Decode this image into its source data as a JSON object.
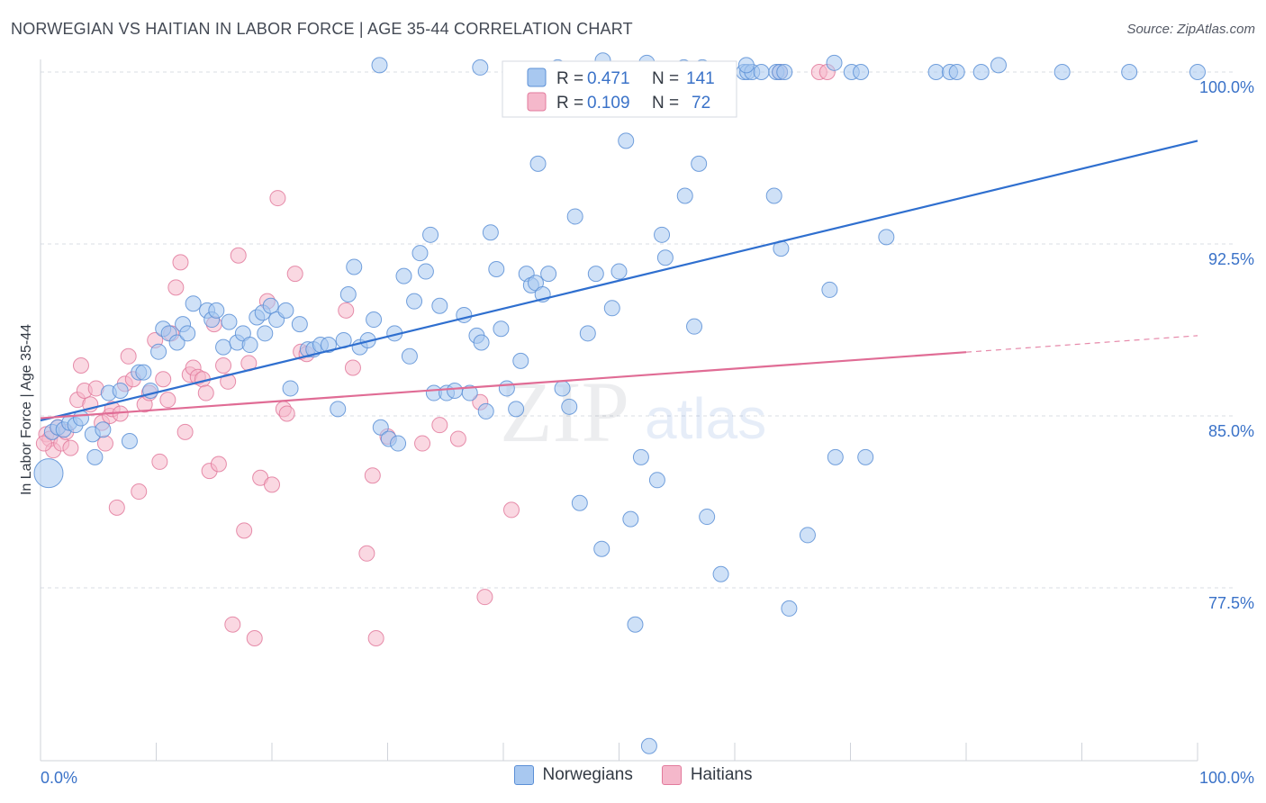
{
  "title": "NORWEGIAN VS HAITIAN IN LABOR FORCE | AGE 35-44 CORRELATION CHART",
  "source": "Source: ZipAtlas.com",
  "watermark": {
    "zip": "ZIP",
    "atlas": "atlas"
  },
  "colors": {
    "blue_fill": "#a8c8f0",
    "blue_stroke": "#5b8fd6",
    "blue_line": "#2f6fcf",
    "pink_fill": "#f5b8cb",
    "pink_stroke": "#e27a9c",
    "pink_line": "#e06c95",
    "axis_text": "#3a72c8",
    "grid": "#d8dce3"
  },
  "legend_box": {
    "rows": [
      {
        "r_label": "R = ",
        "r_value": "0.471",
        "n_label": "N = ",
        "n_value": "141"
      },
      {
        "r_label": "R = ",
        "r_value": "0.109",
        "n_label": "N = ",
        "n_value": "72"
      }
    ]
  },
  "chart_data": {
    "type": "scatter",
    "title": "NORWEGIAN VS HAITIAN IN LABOR FORCE | AGE 35-44 CORRELATION CHART",
    "xlabel": "",
    "ylabel": "In Labor Force | Age 35-44",
    "xlim": [
      0,
      100
    ],
    "ylim": [
      71.5,
      100.6
    ],
    "x_tick_labels": [
      "0.0%",
      "100.0%"
    ],
    "y_ticks": [
      77.5,
      85.0,
      92.5,
      100.0
    ],
    "y_tick_labels": [
      "77.5%",
      "85.0%",
      "92.5%",
      "100.0%"
    ],
    "grid": true,
    "legend_position": "bottom",
    "series": [
      {
        "name": "Norwegians",
        "R": 0.471,
        "N": 141,
        "trend": {
          "x": [
            0,
            100
          ],
          "y": [
            84.8,
            97.0
          ],
          "dashed_from": null
        },
        "points": [
          [
            0.7,
            82.5
          ],
          [
            1.0,
            84.3
          ],
          [
            1.5,
            84.5
          ],
          [
            2.0,
            84.4
          ],
          [
            2.5,
            84.7
          ],
          [
            3.0,
            84.6
          ],
          [
            3.5,
            84.9
          ],
          [
            4.5,
            84.2
          ],
          [
            4.7,
            83.2
          ],
          [
            5.4,
            84.4
          ],
          [
            5.9,
            86.0
          ],
          [
            6.9,
            86.1
          ],
          [
            7.7,
            83.9
          ],
          [
            8.5,
            86.9
          ],
          [
            8.9,
            86.9
          ],
          [
            9.5,
            86.1
          ],
          [
            10.2,
            87.8
          ],
          [
            10.6,
            88.8
          ],
          [
            11.1,
            88.6
          ],
          [
            11.8,
            88.2
          ],
          [
            12.3,
            89.0
          ],
          [
            12.7,
            88.6
          ],
          [
            13.2,
            89.9
          ],
          [
            14.4,
            89.6
          ],
          [
            14.8,
            89.2
          ],
          [
            15.2,
            89.6
          ],
          [
            15.8,
            88.0
          ],
          [
            16.3,
            89.1
          ],
          [
            17.0,
            88.2
          ],
          [
            17.5,
            88.6
          ],
          [
            18.1,
            88.1
          ],
          [
            18.7,
            89.3
          ],
          [
            19.2,
            89.5
          ],
          [
            19.4,
            88.6
          ],
          [
            19.9,
            89.8
          ],
          [
            20.4,
            89.2
          ],
          [
            21.2,
            89.6
          ],
          [
            21.6,
            86.2
          ],
          [
            22.4,
            89.0
          ],
          [
            23.1,
            87.9
          ],
          [
            23.6,
            87.9
          ],
          [
            24.2,
            88.1
          ],
          [
            24.9,
            88.1
          ],
          [
            25.7,
            85.3
          ],
          [
            26.2,
            88.3
          ],
          [
            26.6,
            90.3
          ],
          [
            27.1,
            91.5
          ],
          [
            27.6,
            88.0
          ],
          [
            28.3,
            88.3
          ],
          [
            28.8,
            89.2
          ],
          [
            29.4,
            84.5
          ],
          [
            30.6,
            88.6
          ],
          [
            30.1,
            84.0
          ],
          [
            30.9,
            83.8
          ],
          [
            31.4,
            91.1
          ],
          [
            31.9,
            87.6
          ],
          [
            32.3,
            90.0
          ],
          [
            32.8,
            92.1
          ],
          [
            33.3,
            91.3
          ],
          [
            33.7,
            92.9
          ],
          [
            34.0,
            86.0
          ],
          [
            34.5,
            89.8
          ],
          [
            35.1,
            86.0
          ],
          [
            35.8,
            86.1
          ],
          [
            36.6,
            89.4
          ],
          [
            37.1,
            86.0
          ],
          [
            37.7,
            88.5
          ],
          [
            38.1,
            88.2
          ],
          [
            38.5,
            85.2
          ],
          [
            38.9,
            93.0
          ],
          [
            39.4,
            91.4
          ],
          [
            39.8,
            88.8
          ],
          [
            40.3,
            86.2
          ],
          [
            41.1,
            85.3
          ],
          [
            41.5,
            87.4
          ],
          [
            42.0,
            91.2
          ],
          [
            42.4,
            90.7
          ],
          [
            42.8,
            90.8
          ],
          [
            43.0,
            96.0
          ],
          [
            43.4,
            90.3
          ],
          [
            43.9,
            91.2
          ],
          [
            45.1,
            86.2
          ],
          [
            45.7,
            85.4
          ],
          [
            46.2,
            93.7
          ],
          [
            46.6,
            81.2
          ],
          [
            47.3,
            88.6
          ],
          [
            48.0,
            91.2
          ],
          [
            48.5,
            79.2
          ],
          [
            49.4,
            89.7
          ],
          [
            50.0,
            91.3
          ],
          [
            50.6,
            97.0
          ],
          [
            51.0,
            80.5
          ],
          [
            51.4,
            75.9
          ],
          [
            51.9,
            83.2
          ],
          [
            52.6,
            70.6
          ],
          [
            53.3,
            82.2
          ],
          [
            53.7,
            92.9
          ],
          [
            54.0,
            91.9
          ],
          [
            55.7,
            94.6
          ],
          [
            56.5,
            88.9
          ],
          [
            56.9,
            96.0
          ],
          [
            57.6,
            80.6
          ],
          [
            58.8,
            78.1
          ],
          [
            60.8,
            100.0
          ],
          [
            61.1,
            100.0
          ],
          [
            61.5,
            100.0
          ],
          [
            62.3,
            100.0
          ],
          [
            63.6,
            100.0
          ],
          [
            63.9,
            100.0
          ],
          [
            64.3,
            100.0
          ],
          [
            63.4,
            94.6
          ],
          [
            64.0,
            92.3
          ],
          [
            64.7,
            76.6
          ],
          [
            66.3,
            79.8
          ],
          [
            68.2,
            90.5
          ],
          [
            68.7,
            83.2
          ],
          [
            70.1,
            100.0
          ],
          [
            70.9,
            100.0
          ],
          [
            71.3,
            83.2
          ],
          [
            73.1,
            92.8
          ],
          [
            77.4,
            100.0
          ],
          [
            78.6,
            100.0
          ],
          [
            79.2,
            100.0
          ],
          [
            81.3,
            100.0
          ],
          [
            88.3,
            100.0
          ],
          [
            94.1,
            100.0
          ],
          [
            100.0,
            100.0
          ],
          [
            48.6,
            100.5
          ],
          [
            57.2,
            100.2
          ],
          [
            61.0,
            100.3
          ],
          [
            38.0,
            100.2
          ],
          [
            44.7,
            100.2
          ],
          [
            52.4,
            100.4
          ],
          [
            29.3,
            100.3
          ],
          [
            55.6,
            100.2
          ],
          [
            68.6,
            100.4
          ],
          [
            82.8,
            100.3
          ]
        ]
      },
      {
        "name": "Haitians",
        "R": 0.109,
        "N": 72,
        "trend": {
          "x": [
            0,
            100
          ],
          "y": [
            84.9,
            88.5
          ],
          "dashed_from": 80
        },
        "points": [
          [
            0.5,
            84.2
          ],
          [
            0.8,
            84.0
          ],
          [
            1.1,
            83.5
          ],
          [
            1.5,
            84.5
          ],
          [
            1.8,
            83.8
          ],
          [
            2.2,
            84.3
          ],
          [
            2.6,
            83.6
          ],
          [
            3.2,
            85.7
          ],
          [
            3.5,
            87.2
          ],
          [
            3.8,
            86.1
          ],
          [
            4.3,
            85.5
          ],
          [
            4.8,
            86.2
          ],
          [
            5.3,
            84.7
          ],
          [
            5.6,
            83.8
          ],
          [
            6.0,
            85.0
          ],
          [
            6.2,
            85.3
          ],
          [
            6.6,
            81.0
          ],
          [
            6.9,
            85.1
          ],
          [
            7.3,
            86.4
          ],
          [
            7.6,
            87.6
          ],
          [
            8.0,
            86.6
          ],
          [
            8.5,
            81.7
          ],
          [
            9.0,
            85.5
          ],
          [
            9.4,
            86.0
          ],
          [
            9.9,
            88.3
          ],
          [
            10.3,
            83.0
          ],
          [
            10.6,
            86.6
          ],
          [
            11.0,
            85.7
          ],
          [
            11.3,
            88.6
          ],
          [
            11.7,
            90.6
          ],
          [
            12.1,
            91.7
          ],
          [
            12.5,
            84.3
          ],
          [
            12.9,
            86.8
          ],
          [
            13.2,
            87.1
          ],
          [
            13.6,
            86.7
          ],
          [
            14.0,
            86.6
          ],
          [
            14.3,
            86.0
          ],
          [
            14.6,
            82.6
          ],
          [
            15.0,
            89.0
          ],
          [
            15.4,
            82.9
          ],
          [
            15.8,
            87.2
          ],
          [
            16.2,
            86.5
          ],
          [
            16.6,
            75.9
          ],
          [
            17.1,
            92.0
          ],
          [
            17.6,
            80.0
          ],
          [
            18.0,
            87.3
          ],
          [
            18.5,
            75.3
          ],
          [
            19.0,
            82.3
          ],
          [
            19.6,
            90.0
          ],
          [
            20.0,
            82.0
          ],
          [
            20.5,
            94.5
          ],
          [
            21.0,
            85.3
          ],
          [
            21.3,
            85.1
          ],
          [
            22.0,
            91.2
          ],
          [
            22.5,
            87.8
          ],
          [
            23.0,
            87.7
          ],
          [
            26.4,
            89.6
          ],
          [
            27.0,
            87.1
          ],
          [
            28.2,
            79.0
          ],
          [
            28.7,
            82.4
          ],
          [
            29.0,
            75.3
          ],
          [
            30.0,
            84.1
          ],
          [
            33.0,
            83.8
          ],
          [
            34.5,
            84.6
          ],
          [
            36.1,
            84.0
          ],
          [
            38.0,
            85.6
          ],
          [
            38.4,
            77.1
          ],
          [
            40.7,
            80.9
          ],
          [
            63.9,
            100.0
          ],
          [
            67.3,
            100.0
          ],
          [
            68.0,
            100.0
          ],
          [
            0.3,
            83.8
          ]
        ]
      }
    ]
  },
  "bottom_legend": [
    {
      "label": "Norwegians"
    },
    {
      "label": "Haitians"
    }
  ]
}
